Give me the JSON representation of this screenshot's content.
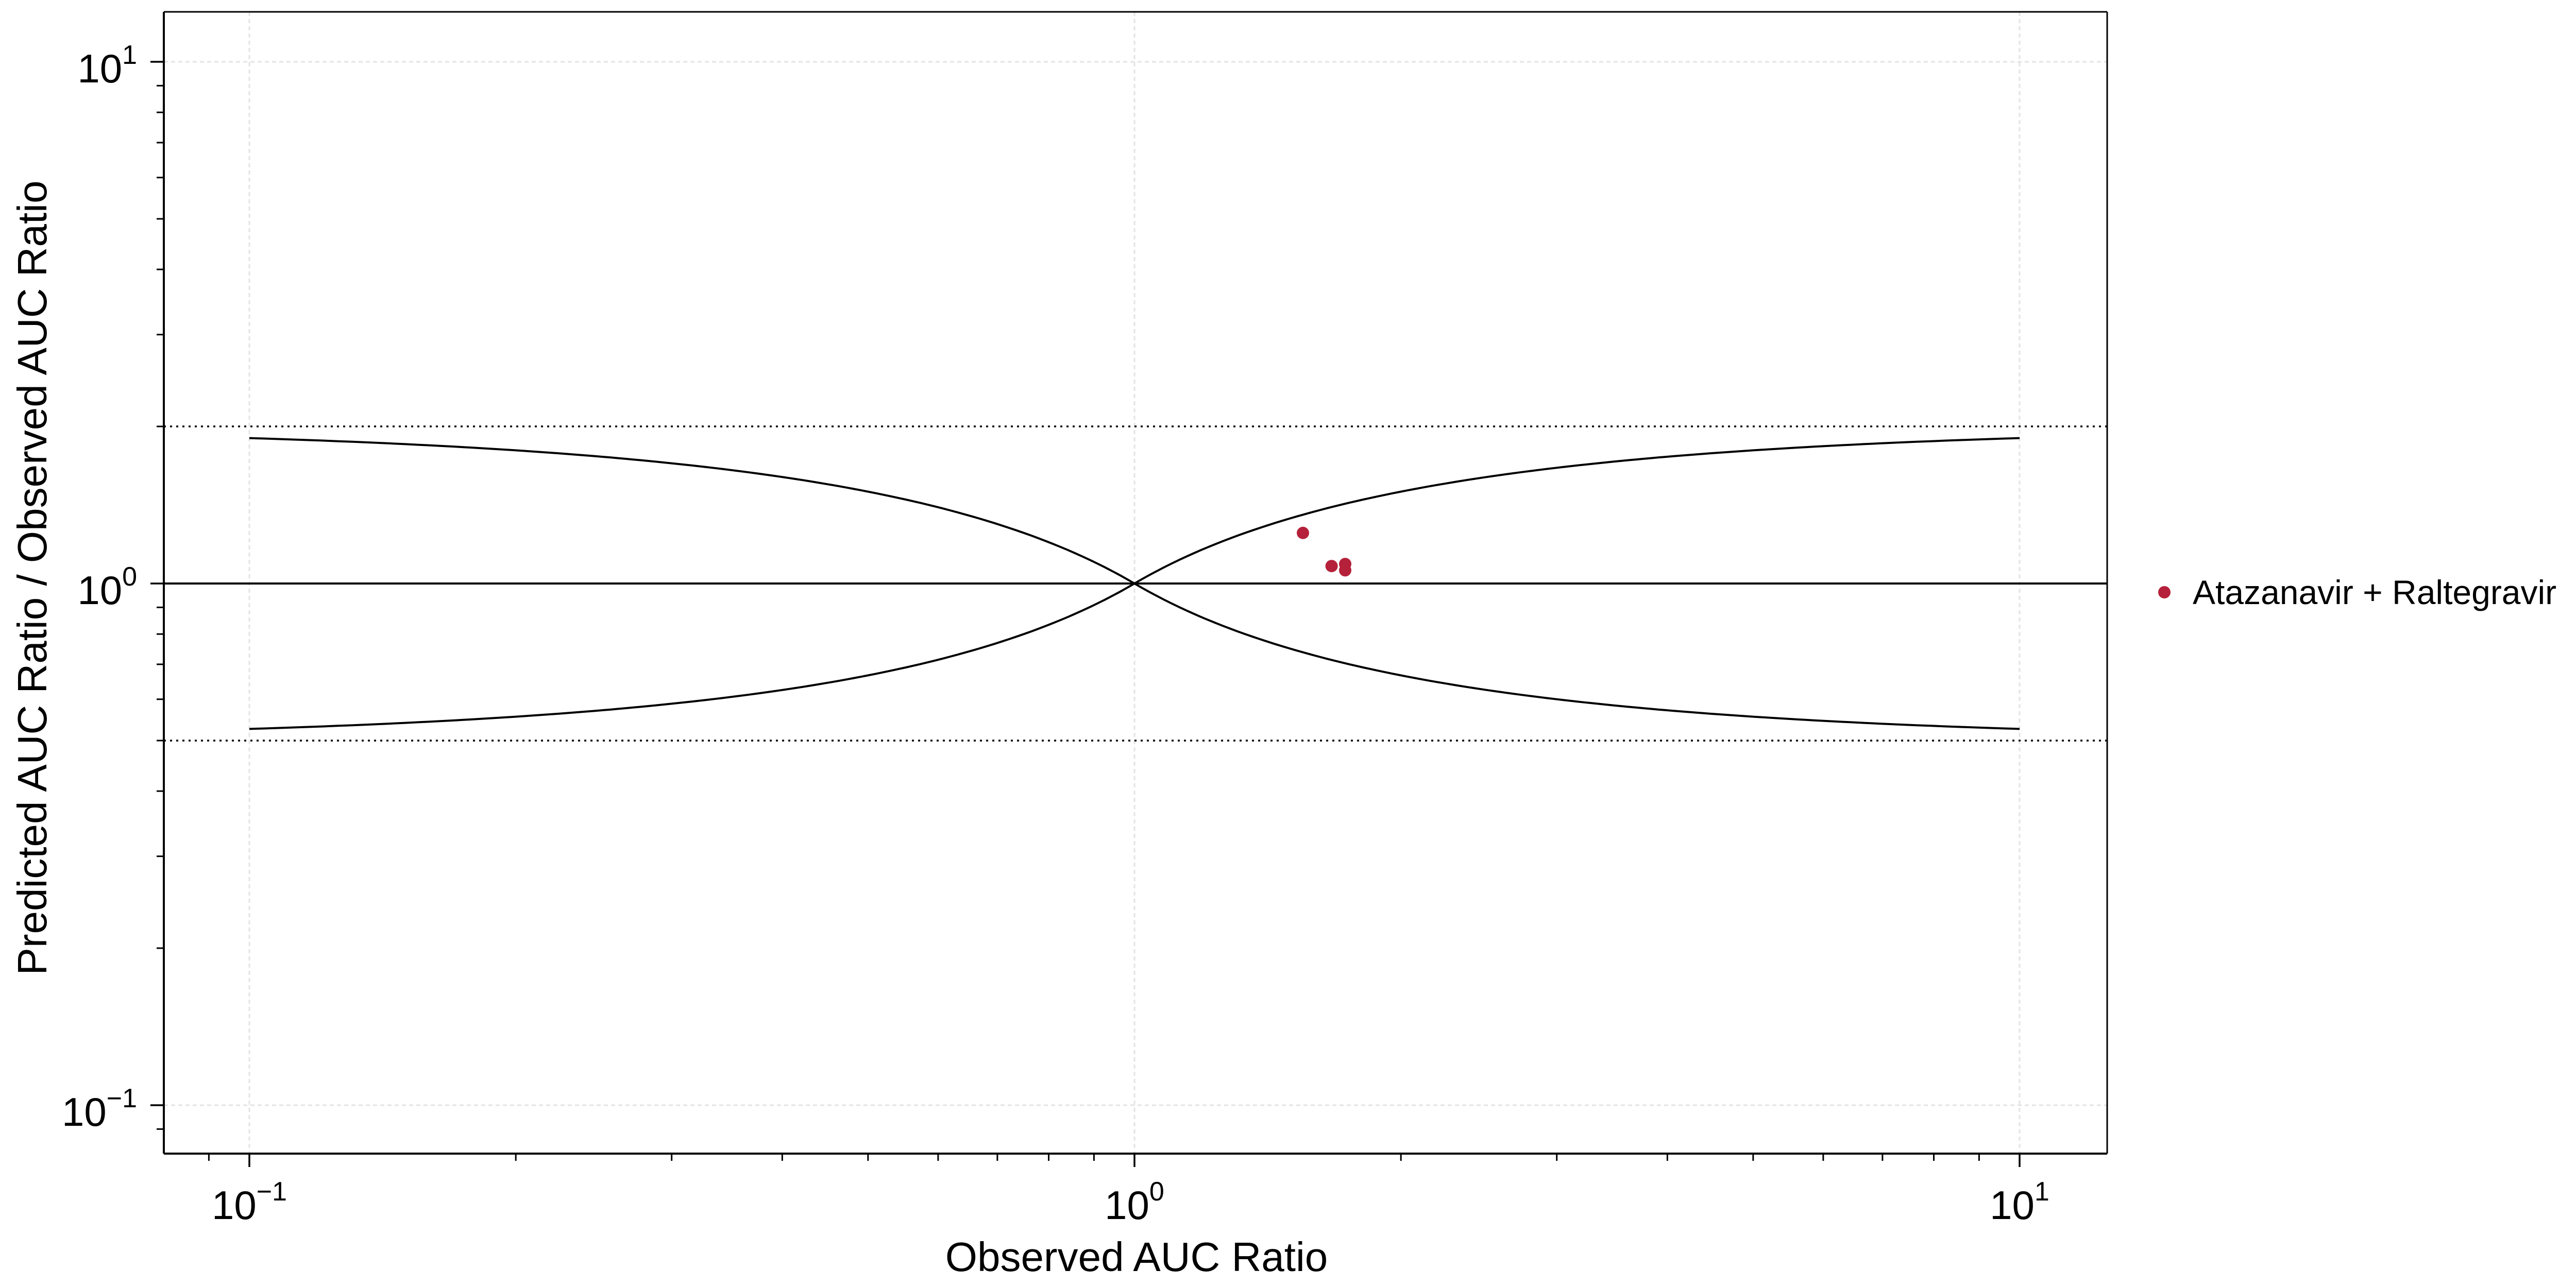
{
  "chart_data": {
    "type": "scatter",
    "xlabel": "Observed AUC Ratio",
    "ylabel": "Predicted AUC Ratio / Observed AUC Ratio",
    "x_scale": "log",
    "y_scale": "log",
    "xlim": [
      0.081,
      12.4
    ],
    "ylim": [
      0.081,
      12.4
    ],
    "grid": true,
    "legend_position": "right",
    "x_ticks": [
      {
        "base": "10",
        "exp": "−1",
        "value": 0.1
      },
      {
        "base": "10",
        "exp": "0",
        "value": 1
      },
      {
        "base": "10",
        "exp": "1",
        "value": 10
      }
    ],
    "y_ticks": [
      {
        "base": "10",
        "exp": "−1",
        "value": 0.1
      },
      {
        "base": "10",
        "exp": "0",
        "value": 1
      },
      {
        "base": "10",
        "exp": "1",
        "value": 10
      }
    ],
    "reference_lines": {
      "unity": 1,
      "twofold_dotted": [
        0.5,
        2
      ],
      "guest_limit_curves": {
        "x_range": [
          0.1,
          10
        ],
        "delta": 1
      }
    },
    "series": [
      {
        "name": "Atazanavir + Raltegravir",
        "color": "#b5213a",
        "points": [
          {
            "x": 1.55,
            "y": 1.25
          },
          {
            "x": 1.67,
            "y": 1.08
          },
          {
            "x": 1.73,
            "y": 1.09
          },
          {
            "x": 1.73,
            "y": 1.06
          }
        ]
      }
    ]
  }
}
